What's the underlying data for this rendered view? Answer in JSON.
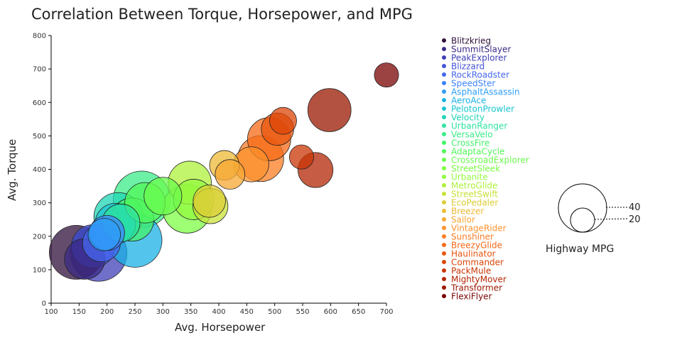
{
  "chart_data": {
    "type": "scatter",
    "title": "Correlation Between Torque, Horsepower, and MPG",
    "xlabel": "Avg. Horsepower",
    "ylabel": "Avg. Torque",
    "xlim": [
      100,
      700
    ],
    "ylim": [
      0,
      800
    ],
    "xticks": [
      100,
      150,
      200,
      250,
      300,
      350,
      400,
      450,
      500,
      550,
      600,
      650,
      700
    ],
    "yticks": [
      0,
      100,
      200,
      300,
      400,
      500,
      600,
      700,
      800
    ],
    "grid": false,
    "size_legend": {
      "title": "Highway MPG",
      "entries": [
        40,
        20
      ]
    },
    "series": [
      {
        "name": "Blitzkrieg",
        "color": "#30123b",
        "x": 145,
        "y": 152,
        "mpg": 40
      },
      {
        "name": "SummitSlayer",
        "color": "#3b2a86",
        "x": 160,
        "y": 132,
        "mpg": 30
      },
      {
        "name": "PeakExplorer",
        "color": "#4040b8",
        "x": 185,
        "y": 150,
        "mpg": 42
      },
      {
        "name": "Blizzard",
        "color": "#4354d9",
        "x": 175,
        "y": 170,
        "mpg": 32
      },
      {
        "name": "RockRoadster",
        "color": "#4667ef",
        "x": 190,
        "y": 180,
        "mpg": 28
      },
      {
        "name": "SpeedSter",
        "color": "#3e84fd",
        "x": 200,
        "y": 210,
        "mpg": 26
      },
      {
        "name": "AsphaltAssassin",
        "color": "#2d9df7",
        "x": 195,
        "y": 205,
        "mpg": 24
      },
      {
        "name": "AeroAce",
        "color": "#1ab2e6",
        "x": 250,
        "y": 188,
        "mpg": 40
      },
      {
        "name": "PelotonProwler",
        "color": "#19c6d0",
        "x": 215,
        "y": 238,
        "mpg": 30
      },
      {
        "name": "Velocity",
        "color": "#1fd6b6",
        "x": 220,
        "y": 258,
        "mpg": 36
      },
      {
        "name": "UrbanRanger",
        "color": "#2ee3a0",
        "x": 225,
        "y": 240,
        "mpg": 28
      },
      {
        "name": "VersaVelo",
        "color": "#3bec89",
        "x": 262,
        "y": 310,
        "mpg": 42
      },
      {
        "name": "CrossFire",
        "color": "#45f26b",
        "x": 245,
        "y": 250,
        "mpg": 32
      },
      {
        "name": "AdaptaCycle",
        "color": "#52f758",
        "x": 268,
        "y": 300,
        "mpg": 30
      },
      {
        "name": "CrossroadExplorer",
        "color": "#6bfb4d",
        "x": 300,
        "y": 320,
        "mpg": 28
      },
      {
        "name": "StreetSleek",
        "color": "#7dfd45",
        "x": 343,
        "y": 282,
        "mpg": 36
      },
      {
        "name": "Urbanite",
        "color": "#92fb3f",
        "x": 355,
        "y": 310,
        "mpg": 30
      },
      {
        "name": "MetroGlide",
        "color": "#aef03b",
        "x": 348,
        "y": 360,
        "mpg": 32
      },
      {
        "name": "StreetSwift",
        "color": "#c8e138",
        "x": 385,
        "y": 290,
        "mpg": 26
      },
      {
        "name": "EcoPedaler",
        "color": "#dccd37",
        "x": 383,
        "y": 305,
        "mpg": 24
      },
      {
        "name": "Breezer",
        "color": "#edb935",
        "x": 410,
        "y": 412,
        "mpg": 22
      },
      {
        "name": "Sailor",
        "color": "#f7a733",
        "x": 420,
        "y": 385,
        "mpg": 22
      },
      {
        "name": "VintageRider",
        "color": "#fc922c",
        "x": 458,
        "y": 415,
        "mpg": 26
      },
      {
        "name": "Sunshiner",
        "color": "#fb7d22",
        "x": 475,
        "y": 432,
        "mpg": 34
      },
      {
        "name": "BreezyGlide",
        "color": "#f56a17",
        "x": 490,
        "y": 490,
        "mpg": 32
      },
      {
        "name": "Haulinator",
        "color": "#e9560e",
        "x": 505,
        "y": 520,
        "mpg": 24
      },
      {
        "name": "Commander",
        "color": "#db4508",
        "x": 515,
        "y": 545,
        "mpg": 20
      },
      {
        "name": "PackMule",
        "color": "#c83505",
        "x": 548,
        "y": 437,
        "mpg": 18
      },
      {
        "name": "MightyMover",
        "color": "#b32604",
        "x": 573,
        "y": 398,
        "mpg": 26
      },
      {
        "name": "Transformer",
        "color": "#9b1802",
        "x": 598,
        "y": 577,
        "mpg": 32
      },
      {
        "name": "FlexiFlyer",
        "color": "#7a0403",
        "x": 700,
        "y": 682,
        "mpg": 18
      }
    ]
  }
}
